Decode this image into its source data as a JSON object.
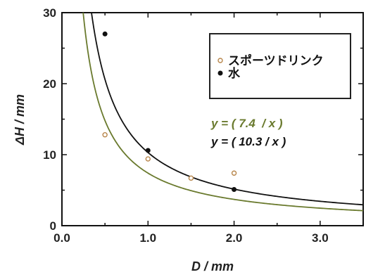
{
  "chart_data": {
    "type": "scatter",
    "xlabel": "D / mm",
    "ylabel": "ΔH / mm",
    "xlim": [
      0,
      3.5
    ],
    "ylim": [
      0,
      30
    ],
    "x_ticks": [
      "0.0",
      "1.0",
      "2.0",
      "3.0"
    ],
    "y_ticks": [
      "0",
      "10",
      "20",
      "30"
    ],
    "legend_position": "top-right",
    "series": [
      {
        "name": "スポーツドリンク",
        "marker": "open-circle",
        "color": "#b8864b",
        "x": [
          0.5,
          1.0,
          1.5,
          2.0
        ],
        "y": [
          12.8,
          9.4,
          6.7,
          7.4
        ]
      },
      {
        "name": "水",
        "marker": "filled-circle",
        "color": "#111111",
        "x": [
          0.5,
          1.0,
          2.0
        ],
        "y": [
          27.0,
          10.6,
          5.1
        ]
      }
    ],
    "fits": [
      {
        "label": "y = ( 7.4  / x )",
        "k": 7.4,
        "color": "#6a7a2e"
      },
      {
        "label": "y = ( 10.3 / x )",
        "k": 10.3,
        "color": "#111111"
      }
    ]
  }
}
